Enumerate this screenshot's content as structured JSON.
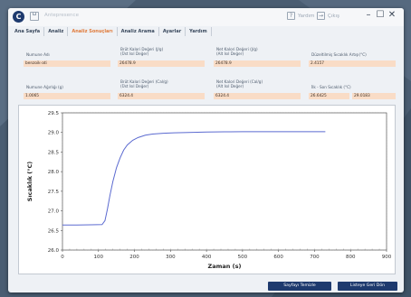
{
  "window": {
    "title": "Antepresence"
  },
  "titlebar": {
    "help_label": "Yardım",
    "exit_label": "Çıkış",
    "minimize": "–",
    "maximize": "☐",
    "close": "✕"
  },
  "tabs": [
    {
      "label": "Ana Sayfa"
    },
    {
      "label": "Analiz"
    },
    {
      "label": "Analiz Sonuçları"
    },
    {
      "label": "Analiz Arama"
    },
    {
      "label": "Ayarlar"
    },
    {
      "label": "Yardım"
    }
  ],
  "form": {
    "sample_name": {
      "label": "Numune Adı",
      "value": "benzoik-ati"
    },
    "gross_heat_jg": {
      "label1": "Brüt Kalori Değeri (J/g)",
      "label2": "(Üst Isıl Değer)",
      "value": "26478.9"
    },
    "net_heat_jg": {
      "label1": "Net Kalori Değeri (J/g)",
      "label2": "(Alt Isıl Değer)",
      "value": "26478.9"
    },
    "temp_rise": {
      "label": "Düzeltilmiş Sıcaklık Artışı(°C)",
      "value": "2.4157"
    },
    "sample_weight": {
      "label": "Numune Ağırlığı (g)",
      "value": "1.0065"
    },
    "gross_heat_cal": {
      "label1": "Brüt Kalori Değeri (Cal/g)",
      "label2": "(Üst Isıl Değer)",
      "value": "6324.4"
    },
    "net_heat_cal": {
      "label1": "Net Kalori Değeri (Cal/g)",
      "label2": "(Alt Isıl Değer)",
      "value": "6324.4"
    },
    "initial_final_temp": {
      "label": "İlk - Son Sıcaklık (°C)",
      "value_initial": "26.6425",
      "value_final": "29.0183"
    }
  },
  "buttons": {
    "clear_page": "Sayfayı Temizle",
    "back_to_list": "Listeye Geri Dön"
  },
  "colors": {
    "accent": "#e07a3a",
    "primary": "#1e3a6e",
    "field": "#f9dcc6",
    "line": "#5b6ad0"
  },
  "chart_data": {
    "type": "line",
    "title": "",
    "xlabel": "Zaman (s)",
    "ylabel": "Sıcaklık (°C)",
    "xlim": [
      0,
      900
    ],
    "ylim": [
      26.0,
      29.5
    ],
    "xticks": [
      "0",
      "100",
      "200",
      "300",
      "400",
      "500",
      "600",
      "700",
      "800",
      "900"
    ],
    "yticks": [
      "26.0",
      "26.5",
      "27.0",
      "27.5",
      "28.0",
      "28.5",
      "29.0",
      "29.5"
    ],
    "grid": true,
    "series": [
      {
        "x": [
          0,
          40,
          80,
          110,
          118,
          125,
          132,
          140,
          150,
          160,
          170,
          180,
          195,
          210,
          230,
          250,
          280,
          310,
          350,
          400,
          450,
          500,
          600,
          700,
          730
        ],
        "y": [
          26.64,
          26.64,
          26.645,
          26.65,
          26.75,
          27.05,
          27.4,
          27.75,
          28.1,
          28.35,
          28.55,
          28.68,
          28.8,
          28.87,
          28.93,
          28.96,
          28.98,
          28.99,
          29.0,
          29.01,
          29.015,
          29.018,
          29.018,
          29.018,
          29.018
        ]
      }
    ]
  }
}
